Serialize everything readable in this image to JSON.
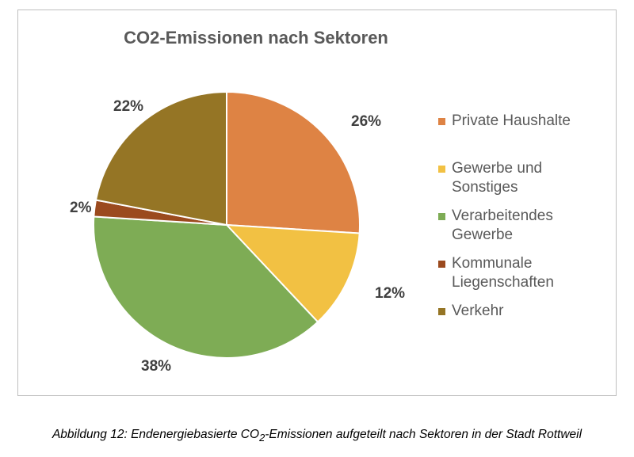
{
  "chart_data": {
    "type": "pie",
    "title": "CO2-Emissionen nach Sektoren",
    "categories": [
      "Private Haushalte",
      "Gewerbe und Sonstiges",
      "Verarbeitendes Gewerbe",
      "Kommunale Liegenschaften",
      "Verkehr"
    ],
    "values": [
      26,
      12,
      38,
      2,
      22
    ],
    "labels": [
      "26%",
      "12%",
      "38%",
      "2%",
      "22%"
    ],
    "colors": [
      "#DE8344",
      "#F2C143",
      "#7EAC55",
      "#9B4A1E",
      "#957525"
    ],
    "legend": "right"
  },
  "caption": {
    "prefix": "Abbildung 12: Endenergiebasierte CO",
    "subscript": "2",
    "suffix": "-Emissionen aufgeteilt nach Sektoren in der Stadt Rottweil"
  }
}
